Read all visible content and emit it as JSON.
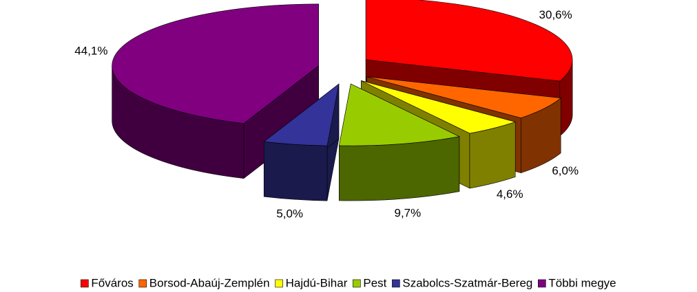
{
  "chart_data": {
    "type": "pie3d",
    "categories": [
      "Főváros",
      "Borsod-Abaúj-Zemplén",
      "Hajdú-Bihar",
      "Pest",
      "Szabolcs-Szatmár-Bereg",
      "Többi megye"
    ],
    "values": [
      30.6,
      6.0,
      4.6,
      9.7,
      5.0,
      44.1
    ],
    "value_labels": [
      "30,6%",
      "6,0%",
      "4,6%",
      "9,7%",
      "5,0%",
      "44,1%"
    ],
    "colors": [
      "#ff0000",
      "#ff6600",
      "#ffff00",
      "#99cc00",
      "#333399",
      "#800080"
    ],
    "legend": "bottom"
  }
}
